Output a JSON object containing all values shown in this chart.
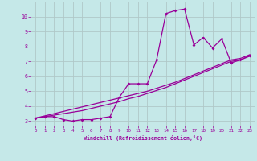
{
  "x_values": [
    0,
    1,
    2,
    3,
    4,
    5,
    6,
    7,
    8,
    9,
    10,
    11,
    12,
    13,
    14,
    15,
    16,
    17,
    18,
    19,
    20,
    21,
    22,
    23
  ],
  "line1_y": [
    3.2,
    3.3,
    3.3,
    3.1,
    3.0,
    3.1,
    3.1,
    3.2,
    3.3,
    4.6,
    5.5,
    5.5,
    5.5,
    7.1,
    10.2,
    10.4,
    10.5,
    8.1,
    8.6,
    7.9,
    8.5,
    6.9,
    7.1,
    7.4
  ],
  "line2_y": [
    3.2,
    3.35,
    3.5,
    3.65,
    3.8,
    3.95,
    4.1,
    4.25,
    4.4,
    4.55,
    4.7,
    4.85,
    5.0,
    5.2,
    5.4,
    5.6,
    5.85,
    6.1,
    6.35,
    6.6,
    6.85,
    7.1,
    7.2,
    7.45
  ],
  "line3_y": [
    3.2,
    3.3,
    3.4,
    3.5,
    3.6,
    3.7,
    3.85,
    4.0,
    4.15,
    4.3,
    4.5,
    4.65,
    4.85,
    5.05,
    5.25,
    5.5,
    5.75,
    6.0,
    6.25,
    6.5,
    6.75,
    7.0,
    7.1,
    7.35
  ],
  "line_color": "#990099",
  "bg_color": "#c5e8e8",
  "grid_color": "#b0c8c8",
  "xlabel": "Windchill (Refroidissement éolien,°C)",
  "xlim": [
    -0.5,
    23.5
  ],
  "ylim": [
    2.7,
    11.0
  ],
  "yticks": [
    3,
    4,
    5,
    6,
    7,
    8,
    9,
    10
  ],
  "xticks": [
    0,
    1,
    2,
    3,
    4,
    5,
    6,
    7,
    8,
    9,
    10,
    11,
    12,
    13,
    14,
    15,
    16,
    17,
    18,
    19,
    20,
    21,
    22,
    23
  ]
}
